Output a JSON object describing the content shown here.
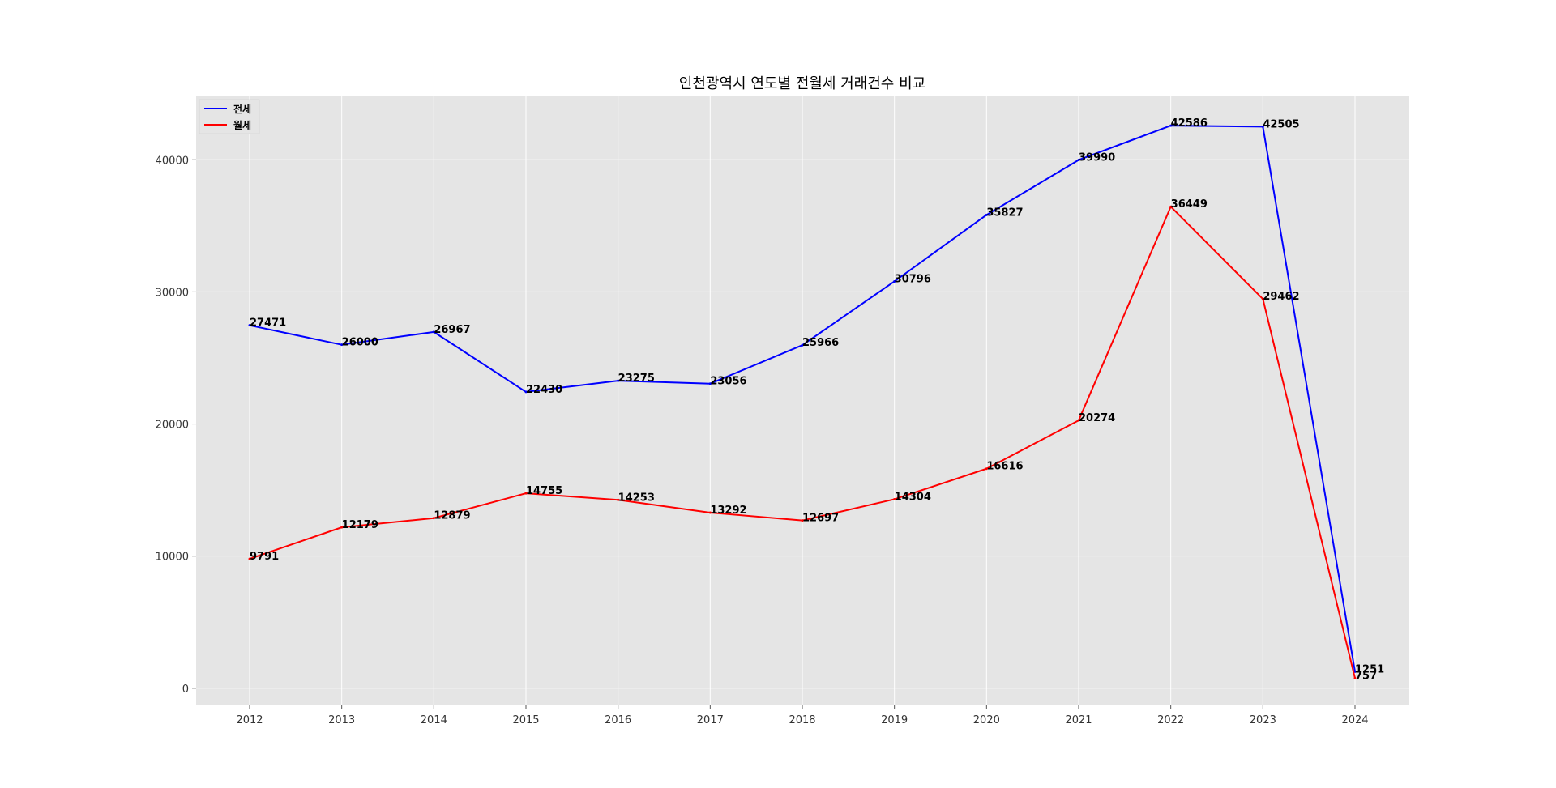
{
  "chart_data": {
    "type": "line",
    "title": "인천광역시 연도별 전월세 거래건수 비교",
    "xlabel": "",
    "ylabel": "",
    "x": [
      "2012",
      "2013",
      "2014",
      "2015",
      "2016",
      "2017",
      "2018",
      "2019",
      "2020",
      "2021",
      "2022",
      "2023",
      "2024"
    ],
    "series": [
      {
        "name": "전세",
        "color": "#0000ff",
        "values": [
          27471,
          26000,
          26967,
          22430,
          23275,
          23056,
          25966,
          30796,
          35827,
          39990,
          42586,
          42505,
          1251
        ]
      },
      {
        "name": "월세",
        "color": "#ff0000",
        "values": [
          9791,
          12179,
          12879,
          14755,
          14253,
          13292,
          12697,
          14304,
          16616,
          20274,
          36449,
          29462,
          757
        ]
      }
    ],
    "yticks": [
      0,
      10000,
      20000,
      30000,
      40000
    ],
    "ylim": [
      -1300,
      44800
    ],
    "grid": true,
    "legend_position": "upper-left",
    "background_color": "#e5e5e5",
    "grid_color": "#ffffff"
  }
}
